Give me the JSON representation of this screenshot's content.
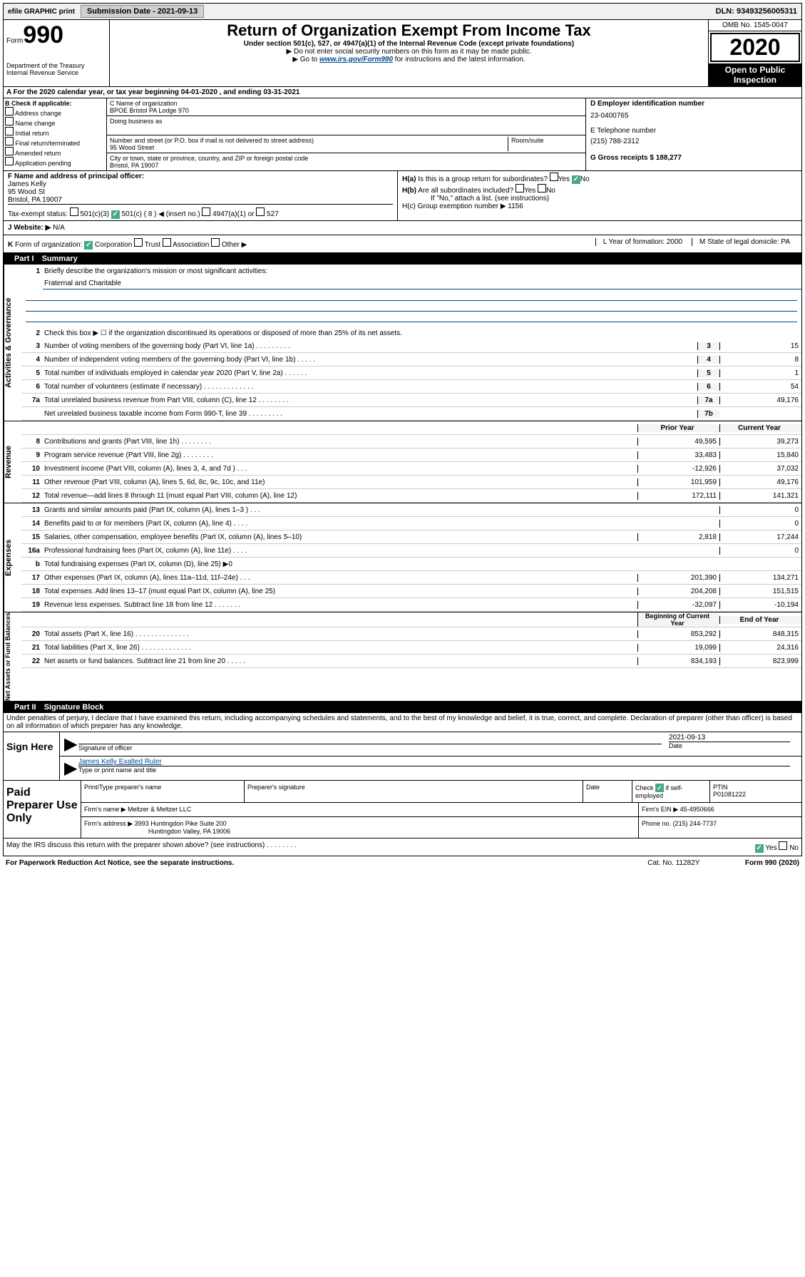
{
  "topbar": {
    "efile": "efile GRAPHIC print",
    "submission_label": "Submission Date - 2021-09-13",
    "dln": "DLN: 93493256005311"
  },
  "header": {
    "form_prefix": "Form",
    "form_number": "990",
    "dept": "Department of the Treasury\nInternal Revenue Service",
    "title": "Return of Organization Exempt From Income Tax",
    "subtitle": "Under section 501(c), 527, or 4947(a)(1) of the Internal Revenue Code (except private foundations)",
    "note1": "▶ Do not enter social security numbers on this form as it may be made public.",
    "note2_pre": "▶ Go to ",
    "note2_link": "www.irs.gov/Form990",
    "note2_post": " for instructions and the latest information.",
    "omb": "OMB No. 1545-0047",
    "year": "2020",
    "open": "Open to Public Inspection"
  },
  "row_a": "A For the 2020 calendar year, or tax year beginning 04-01-2020    , and ending 03-31-2021",
  "section_b": {
    "label": "B Check if applicable:",
    "items": [
      "Address change",
      "Name change",
      "Initial return",
      "Final return/terminated",
      "Amended return",
      "Application pending"
    ]
  },
  "section_c": {
    "name_label": "C Name of organization",
    "name": "BPOE Bristol PA Lodge 970",
    "dba_label": "Doing business as",
    "addr_label": "Number and street (or P.O. box if mail is not delivered to street address)",
    "addr": "95 Wood Street",
    "room_label": "Room/suite",
    "city_label": "City or town, state or province, country, and ZIP or foreign postal code",
    "city": "Bristol, PA  19007"
  },
  "section_d": {
    "ein_label": "D Employer identification number",
    "ein": "23-0400765",
    "phone_label": "E Telephone number",
    "phone": "(215) 788-2312",
    "gross_label": "G Gross receipts $ 188,277"
  },
  "section_f": {
    "label": "F  Name and address of principal officer:",
    "name": "James Kelly",
    "addr1": "95 Wood St",
    "addr2": "Bristol, PA  19007",
    "tax_status": "Tax-exempt status:",
    "ts_opts": "501(c)(3)       501(c) ( 8 ) ◀ (insert no.)       4947(a)(1) or      527"
  },
  "section_h": {
    "ha": "H(a)  Is this is a group return for subordinates?",
    "ha_ans": "Yes  No",
    "hb": "H(b)  Are all subordinates included?",
    "hb_ans": "Yes  No",
    "hb_note": "If \"No,\" attach a list. (see instructions)",
    "hc": "H(c)  Group exemption number ▶   1156"
  },
  "row_j": {
    "label": "J   Website: ▶",
    "value": "N/A"
  },
  "row_k": {
    "left": "K Form of organization:      Corporation      Trust      Association      Other ▶",
    "l": "L Year of formation: 2000",
    "m": "M State of legal domicile: PA"
  },
  "part1_label": "Part I",
  "part1_title": "Summary",
  "governance": {
    "label": "Activities & Governance",
    "l1_label": "Briefly describe the organization's mission or most significant activities:",
    "l1_value": "Fraternal and Charitable",
    "l2": "Check this box ▶ ☐  if the organization discontinued its operations or disposed of more than 25% of its net assets.",
    "rows": [
      {
        "n": "3",
        "desc": "Number of voting members of the governing body (Part VI, line 1a)   .    .    .    .    .    .    .    .    .",
        "box": "3",
        "val": "15"
      },
      {
        "n": "4",
        "desc": "Number of independent voting members of the governing body (Part VI, line 1b)   .    .    .    .    .",
        "box": "4",
        "val": "8"
      },
      {
        "n": "5",
        "desc": "Total number of individuals employed in calendar year 2020 (Part V, line 2a)    .    .    .    .    .    .",
        "box": "5",
        "val": "1"
      },
      {
        "n": "6",
        "desc": "Total number of volunteers (estimate if necessary)    .    .    .    .    .    .    .    .    .    .    .    .    .",
        "box": "6",
        "val": "54"
      },
      {
        "n": "7a",
        "desc": "Total unrelated business revenue from Part VIII, column (C), line 12    .    .    .    .    .    .    .    .",
        "box": "7a",
        "val": "49,176"
      },
      {
        "n": "",
        "desc": "Net unrelated business taxable income from Form 990-T, line 39    .    .    .    .    .    .    .    .    .",
        "box": "7b",
        "val": ""
      }
    ]
  },
  "revenue": {
    "label": "Revenue",
    "hdr_prior": "Prior Year",
    "hdr_current": "Current Year",
    "rows": [
      {
        "n": "8",
        "desc": "Contributions and grants (Part VIII, line 1h)    .    .    .    .    .    .    .    .",
        "prior": "49,595",
        "cur": "39,273"
      },
      {
        "n": "9",
        "desc": "Program service revenue (Part VIII, line 2g)    .    .    .    .    .    .    .    .",
        "prior": "33,483",
        "cur": "15,840"
      },
      {
        "n": "10",
        "desc": "Investment income (Part VIII, column (A), lines 3, 4, and 7d )    .    .    .",
        "prior": "-12,926",
        "cur": "37,032"
      },
      {
        "n": "11",
        "desc": "Other revenue (Part VIII, column (A), lines 5, 6d, 8c, 9c, 10c, and 11e)",
        "prior": "101,959",
        "cur": "49,176"
      },
      {
        "n": "12",
        "desc": "Total revenue—add lines 8 through 11 (must equal Part VIII, column (A), line 12)",
        "prior": "172,111",
        "cur": "141,321"
      }
    ]
  },
  "expenses": {
    "label": "Expenses",
    "rows": [
      {
        "n": "13",
        "desc": "Grants and similar amounts paid (Part IX, column (A), lines 1–3 )    .    .    .",
        "prior": "",
        "cur": "0"
      },
      {
        "n": "14",
        "desc": "Benefits paid to or for members (Part IX, column (A), line 4)   .    .    .    .",
        "prior": "",
        "cur": "0"
      },
      {
        "n": "15",
        "desc": "Salaries, other compensation, employee benefits (Part IX, column (A), lines 5–10)",
        "prior": "2,818",
        "cur": "17,244"
      },
      {
        "n": "16a",
        "desc": "Professional fundraising fees (Part IX, column (A), line 11e)    .    .    .    .",
        "prior": "",
        "cur": "0"
      },
      {
        "n": "b",
        "desc": "Total fundraising expenses (Part IX, column (D), line 25) ▶0",
        "prior": "",
        "cur": ""
      },
      {
        "n": "17",
        "desc": "Other expenses (Part IX, column (A), lines 11a–11d, 11f–24e)    .    .    .",
        "prior": "201,390",
        "cur": "134,271"
      },
      {
        "n": "18",
        "desc": "Total expenses. Add lines 13–17 (must equal Part IX, column (A), line 25)",
        "prior": "204,208",
        "cur": "151,515"
      },
      {
        "n": "19",
        "desc": "Revenue less expenses. Subtract line 18 from line 12   .    .    .    .    .    .    .",
        "prior": "-32,097",
        "cur": "-10,194"
      }
    ]
  },
  "netassets": {
    "label": "Net Assets or Fund Balances",
    "hdr_begin": "Beginning of Current Year",
    "hdr_end": "End of Year",
    "rows": [
      {
        "n": "20",
        "desc": "Total assets (Part X, line 16)    .    .    .    .    .    .    .    .    .    .    .    .    .    .",
        "prior": "853,292",
        "cur": "848,315"
      },
      {
        "n": "21",
        "desc": "Total liabilities (Part X, line 26)   .    .    .    .    .    .    .    .    .    .    .    .    .",
        "prior": "19,099",
        "cur": "24,316"
      },
      {
        "n": "22",
        "desc": "Net assets or fund balances. Subtract line 21 from line 20    .    .    .    .    .",
        "prior": "834,193",
        "cur": "823,999"
      }
    ]
  },
  "part2_label": "Part II",
  "part2_title": "Signature Block",
  "perjury": "Under penalties of perjury, I declare that I have examined this return, including accompanying schedules and statements, and to the best of my knowledge and belief, it is true, correct, and complete. Declaration of preparer (other than officer) is based on all information of which preparer has any knowledge.",
  "sign": {
    "left": "Sign Here",
    "sig_officer": "Signature of officer",
    "date": "2021-09-13",
    "date_label": "Date",
    "name": "James Kelly  Exalted Ruler",
    "name_label": "Type or print name and title"
  },
  "prep": {
    "left": "Paid Preparer Use Only",
    "h1": "Print/Type preparer's name",
    "h2": "Preparer's signature",
    "h3": "Date",
    "h4": "Check ☑ if self-employed",
    "h5_label": "PTIN",
    "h5": "P01081222",
    "firm_label": "Firm's name     ▶",
    "firm": "Meltzer & Meltzer LLC",
    "ein_label": "Firm's EIN ▶",
    "ein": "45-4950666",
    "addr_label": "Firm's address ▶",
    "addr1": "3993 Huntingdon Pike Suite 200",
    "addr2": "Huntingdon Valley, PA  19006",
    "phone_label": "Phone no.",
    "phone": "(215) 244-7737"
  },
  "discuss": {
    "text": "May the IRS discuss this return with the preparer shown above? (see instructions)    .    .    .    .    .    .    .    .",
    "yes": "Yes",
    "no": "No"
  },
  "footer": {
    "left": "For Paperwork Reduction Act Notice, see the separate instructions.",
    "mid": "Cat. No. 11282Y",
    "right": "Form 990 (2020)"
  }
}
